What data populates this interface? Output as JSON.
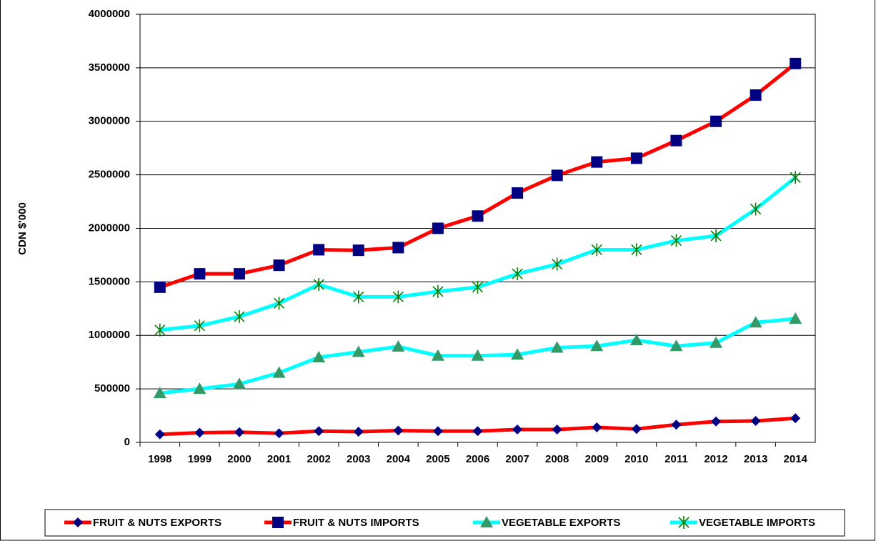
{
  "chart_data": {
    "type": "line",
    "y_label": "CDN $'000",
    "categories": [
      "1998",
      "1999",
      "2000",
      "2001",
      "2002",
      "2003",
      "2004",
      "2005",
      "2006",
      "2007",
      "2008",
      "2009",
      "2010",
      "2011",
      "2012",
      "2013",
      "2014"
    ],
    "ylim": [
      0,
      4000000
    ],
    "yticks": [
      0,
      500000,
      1000000,
      1500000,
      2000000,
      2500000,
      3000000,
      3500000,
      4000000
    ],
    "grid": true,
    "legend": "bottom",
    "series": [
      {
        "name": "FRUIT & NUTS EXPORTS",
        "color": "#ff0000",
        "marker": "diamond",
        "marker_color": "#000080",
        "values": [
          75000,
          90000,
          95000,
          85000,
          105000,
          100000,
          110000,
          105000,
          105000,
          120000,
          120000,
          140000,
          125000,
          165000,
          195000,
          200000,
          225000
        ]
      },
      {
        "name": "FRUIT & NUTS IMPORTS",
        "color": "#ff0000",
        "marker": "square",
        "marker_color": "#000080",
        "values": [
          1450000,
          1575000,
          1575000,
          1655000,
          1800000,
          1795000,
          1820000,
          2000000,
          2115000,
          2330000,
          2495000,
          2620000,
          2655000,
          2820000,
          3000000,
          3245000,
          3540000
        ]
      },
      {
        "name": "VEGETABLE EXPORTS",
        "color": "#00ffff",
        "marker": "triangle",
        "marker_color": "#339966",
        "values": [
          460000,
          500000,
          545000,
          650000,
          795000,
          845000,
          895000,
          810000,
          810000,
          820000,
          885000,
          900000,
          955000,
          900000,
          930000,
          1120000,
          1155000
        ]
      },
      {
        "name": "VEGETABLE IMPORTS",
        "color": "#00ffff",
        "marker": "star",
        "marker_color": "#008000",
        "values": [
          1050000,
          1090000,
          1175000,
          1300000,
          1475000,
          1360000,
          1360000,
          1410000,
          1450000,
          1575000,
          1665000,
          1800000,
          1800000,
          1885000,
          1930000,
          2180000,
          2475000
        ]
      }
    ]
  }
}
